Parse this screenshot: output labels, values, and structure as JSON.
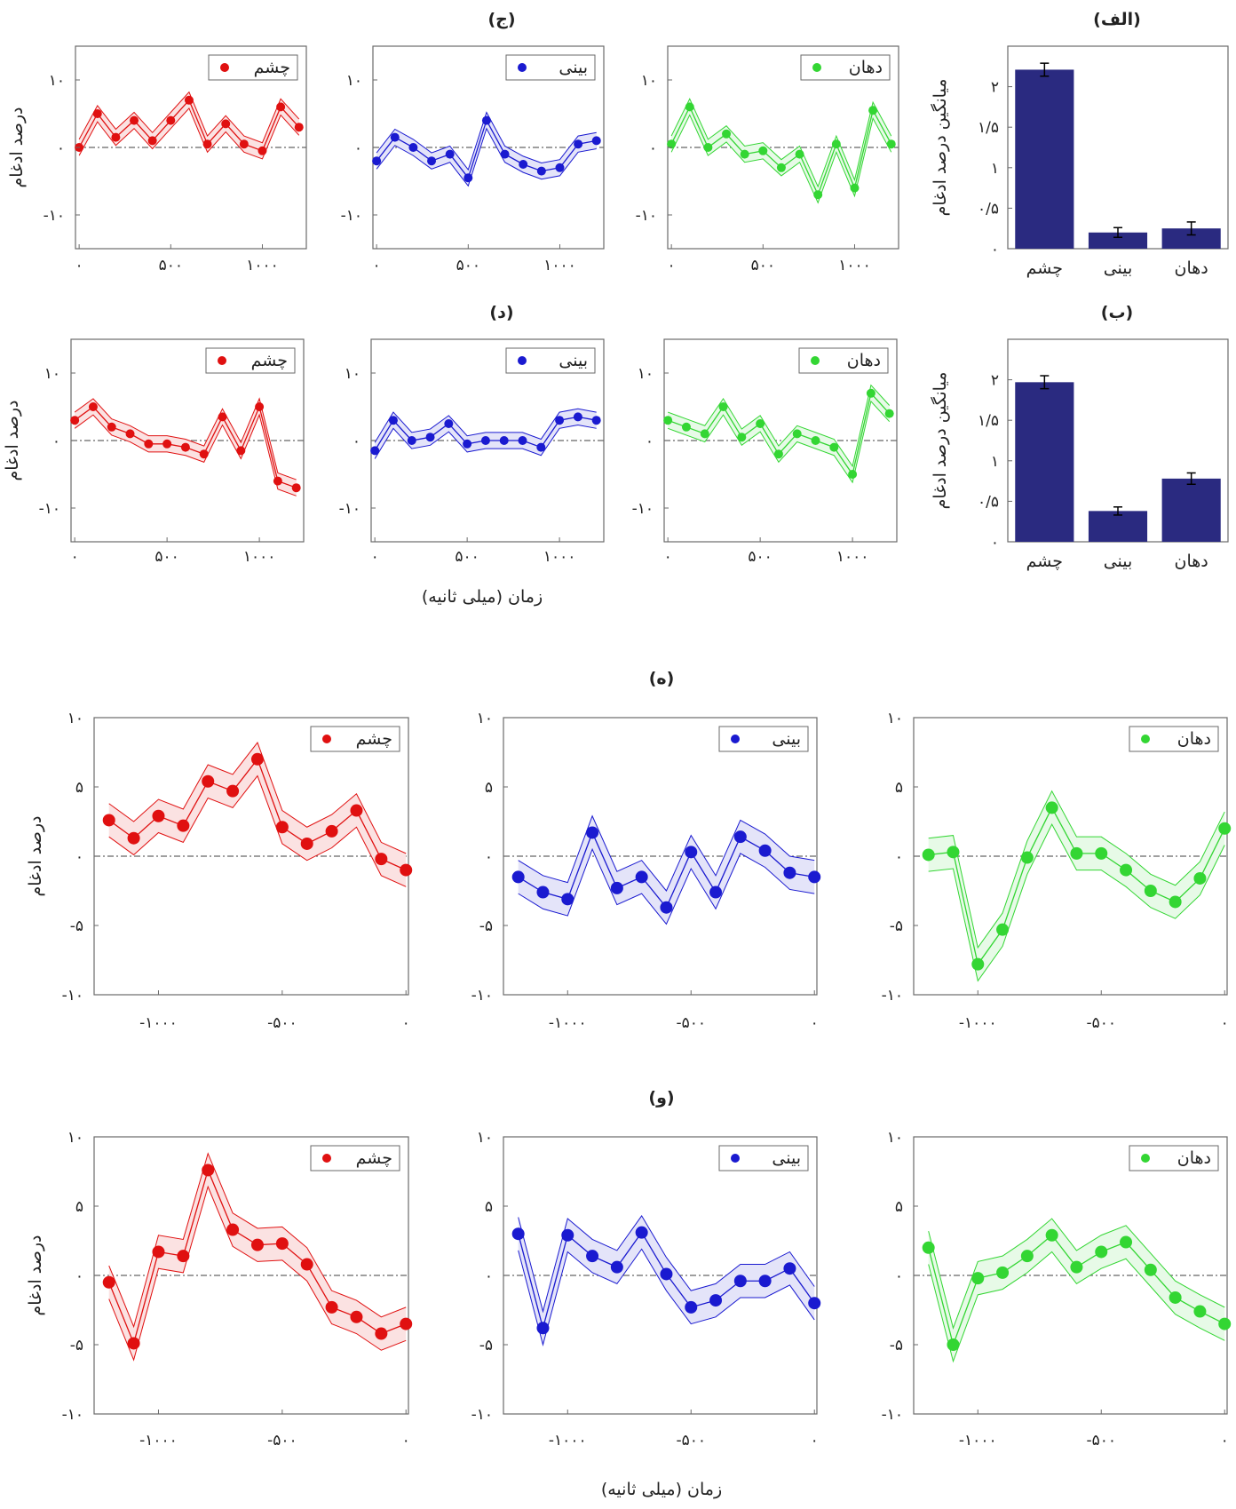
{
  "figure": {
    "row_titles": [
      "(الف)",
      "(ب)",
      "(ج)",
      "(د)",
      "(ه)",
      "(و)"
    ],
    "ylabel_small": "درصد ادغام",
    "ylabel_bar": "میانگین درصد ادغام",
    "xlabel": "زمان (میلی ثانیه)"
  },
  "colors": {
    "eye": "#e01010",
    "nose": "#1a1ad0",
    "mouth": "#33d633",
    "bar": "#2a2a80"
  },
  "chart_data": [
    {
      "id": "alef",
      "type": "bar",
      "title": "(الف)",
      "ylabel": "میانگین درصد ادغام",
      "categories": [
        "چشم",
        "بینی",
        "دهان"
      ],
      "values": [
        2.21,
        0.2,
        0.25
      ],
      "errors": [
        0.08,
        0.06,
        0.08
      ],
      "ylim": [
        0,
        2.5
      ],
      "yticks": [
        0,
        0.5,
        1,
        1.5,
        2
      ],
      "ytick_labels": [
        "۰",
        "۰/۵",
        "۱",
        "۱/۵",
        "۲"
      ]
    },
    {
      "id": "be",
      "type": "bar",
      "title": "(ب)",
      "ylabel": "میانگین درصد ادغام",
      "categories": [
        "چشم",
        "بینی",
        "دهان"
      ],
      "values": [
        1.97,
        0.38,
        0.78
      ],
      "errors": [
        0.08,
        0.05,
        0.07
      ],
      "ylim": [
        0,
        2.5
      ],
      "yticks": [
        0,
        0.5,
        1,
        1.5,
        2
      ],
      "ytick_labels": [
        "۰",
        "۰/۵",
        "۱",
        "۱/۵",
        "۲"
      ]
    },
    {
      "id": "jim",
      "type": "line",
      "title": "(ج)",
      "ylabel": "درصد ادغام",
      "x": [
        0,
        100,
        200,
        300,
        400,
        500,
        600,
        700,
        800,
        900,
        1000,
        1100,
        1200
      ],
      "xlim": [
        -20,
        1240
      ],
      "ylim": [
        -15,
        15
      ],
      "xticks": [
        0,
        500,
        1000
      ],
      "xtick_labels": [
        "۰",
        "۵۰۰",
        "۱۰۰۰"
      ],
      "yticks": [
        -10,
        0,
        10
      ],
      "ytick_labels": [
        "-۱۰",
        "۰",
        "۱۰"
      ],
      "band": 1.2,
      "series": [
        {
          "name": "دهان",
          "color": "mouth",
          "values": [
            0.5,
            6.0,
            0.0,
            2.0,
            -1.0,
            -0.5,
            -3.0,
            -1.0,
            -7.0,
            0.5,
            -6.0,
            5.5,
            0.5
          ]
        },
        {
          "name": "بینی",
          "color": "nose",
          "values": [
            -2.0,
            1.5,
            0.0,
            -2.0,
            -1.0,
            -4.5,
            4.0,
            -1.0,
            -2.5,
            -3.5,
            -3.0,
            0.5,
            1.0
          ]
        },
        {
          "name": "چشم",
          "color": "eye",
          "values": [
            0.0,
            5.0,
            1.5,
            4.0,
            1.0,
            4.0,
            7.0,
            0.5,
            3.5,
            0.5,
            -0.5,
            6.0,
            3.0
          ]
        }
      ]
    },
    {
      "id": "dal",
      "type": "line",
      "title": "(د)",
      "ylabel": "درصد ادغام",
      "x": [
        0,
        100,
        200,
        300,
        400,
        500,
        600,
        700,
        800,
        900,
        1000,
        1100,
        1200
      ],
      "xlim": [
        -20,
        1240
      ],
      "ylim": [
        -15,
        15
      ],
      "xticks": [
        0,
        500,
        1000
      ],
      "xtick_labels": [
        "۰",
        "۵۰۰",
        "۱۰۰۰"
      ],
      "yticks": [
        -10,
        0,
        10
      ],
      "ytick_labels": [
        "-۱۰",
        "۰",
        "۱۰"
      ],
      "band": 1.2,
      "series": [
        {
          "name": "دهان",
          "color": "mouth",
          "values": [
            3.0,
            2.0,
            1.0,
            5.0,
            0.5,
            2.5,
            -2.0,
            1.0,
            0.0,
            -1.0,
            -5.0,
            7.0,
            4.0
          ]
        },
        {
          "name": "بینی",
          "color": "nose",
          "values": [
            -1.5,
            3.0,
            0.0,
            0.5,
            2.5,
            -0.5,
            0.0,
            0.0,
            0.0,
            -1.0,
            3.0,
            3.5,
            3.0
          ]
        },
        {
          "name": "چشم",
          "color": "eye",
          "values": [
            3.0,
            5.0,
            2.0,
            1.0,
            -0.5,
            -0.5,
            -1.0,
            -2.0,
            3.5,
            -1.5,
            5.0,
            -6.0,
            -7.0
          ]
        }
      ]
    },
    {
      "id": "he",
      "type": "line",
      "title": "(ه)",
      "ylabel": "درصد ادغام",
      "x": [
        -1200,
        -1100,
        -1000,
        -900,
        -800,
        -700,
        -600,
        -500,
        -400,
        -300,
        -200,
        -100,
        0
      ],
      "xlim": [
        -1260,
        10
      ],
      "ylim": [
        -10,
        10
      ],
      "xticks": [
        -1000,
        -500,
        0
      ],
      "xtick_labels": [
        "-۱۰۰۰",
        "-۵۰۰",
        "۰"
      ],
      "yticks": [
        -10,
        -5,
        0,
        5,
        10
      ],
      "ytick_labels": [
        "-۱۰",
        "-۵",
        "۰",
        "۵",
        "۱۰"
      ],
      "band": 1.2,
      "series": [
        {
          "name": "دهان",
          "color": "mouth",
          "values": [
            0.1,
            0.3,
            -7.8,
            -5.3,
            -0.1,
            3.5,
            0.2,
            0.2,
            -1.0,
            -2.5,
            -3.3,
            -1.6,
            2.0
          ]
        },
        {
          "name": "بینی",
          "color": "nose",
          "values": [
            -1.5,
            -2.6,
            -3.1,
            1.7,
            -2.3,
            -1.5,
            -3.7,
            0.3,
            -2.6,
            1.4,
            0.4,
            -1.2,
            -1.5
          ]
        },
        {
          "name": "چشم",
          "color": "eye",
          "values": [
            2.6,
            1.3,
            2.9,
            2.2,
            5.4,
            4.7,
            7.0,
            2.1,
            0.9,
            1.8,
            3.3,
            -0.2,
            -1.0
          ]
        }
      ]
    },
    {
      "id": "vav",
      "type": "line",
      "title": "(و)",
      "ylabel": "درصد ادغام",
      "x": [
        -1200,
        -1100,
        -1000,
        -900,
        -800,
        -700,
        -600,
        -500,
        -400,
        -300,
        -200,
        -100,
        0
      ],
      "xlim": [
        -1260,
        10
      ],
      "ylim": [
        -10,
        10
      ],
      "xticks": [
        -1000,
        -500,
        0
      ],
      "xtick_labels": [
        "-۱۰۰۰",
        "-۵۰۰",
        "۰"
      ],
      "yticks": [
        -10,
        -5,
        0,
        5,
        10
      ],
      "ytick_labels": [
        "-۱۰",
        "-۵",
        "۰",
        "۵",
        "۱۰"
      ],
      "band": 1.2,
      "series": [
        {
          "name": "دهان",
          "color": "mouth",
          "values": [
            2.0,
            -5.0,
            -0.2,
            0.2,
            1.4,
            2.9,
            0.6,
            1.7,
            2.4,
            0.4,
            -1.6,
            -2.6,
            -3.5
          ]
        },
        {
          "name": "بینی",
          "color": "nose",
          "values": [
            3.0,
            -3.8,
            2.9,
            1.4,
            0.6,
            3.1,
            0.1,
            -2.3,
            -1.8,
            -0.4,
            -0.4,
            0.5,
            -2.0
          ]
        },
        {
          "name": "چشم",
          "color": "eye",
          "values": [
            -0.5,
            -4.9,
            1.7,
            1.4,
            7.6,
            3.3,
            2.2,
            2.3,
            0.8,
            -2.3,
            -3.0,
            -4.2,
            -3.5
          ]
        }
      ]
    }
  ]
}
